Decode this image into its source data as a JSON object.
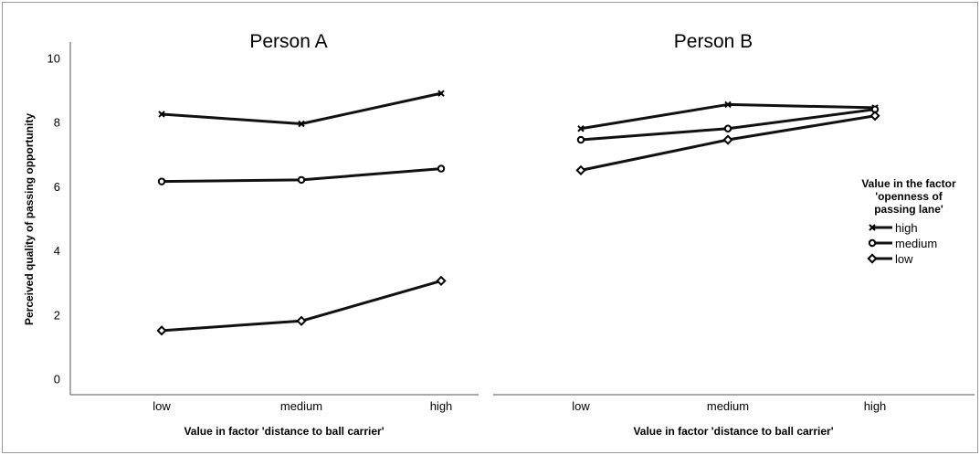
{
  "chart_data": {
    "type": "line",
    "ylabel": "Perceived quality of passing opportunity",
    "yticks": [
      0,
      2,
      4,
      6,
      8,
      10
    ],
    "ylim": [
      -0.5,
      10.5
    ],
    "legend": {
      "title_lines": [
        "Value in the factor",
        "'openness of",
        "passing lane'"
      ],
      "placement": "right"
    },
    "panels": [
      {
        "title": "Person A",
        "xlabel": "Value in factor 'distance to ball carrier'",
        "categories": [
          "low",
          "medium",
          "high"
        ],
        "series": [
          {
            "name": "high",
            "marker": "x",
            "values": [
              8.25,
              7.95,
              8.9
            ]
          },
          {
            "name": "medium",
            "marker": "circle",
            "values": [
              6.15,
              6.2,
              6.55
            ]
          },
          {
            "name": "low",
            "marker": "diamond",
            "values": [
              1.5,
              1.8,
              3.05
            ]
          }
        ]
      },
      {
        "title": "Person B",
        "xlabel": "Value in factor 'distance to ball carrier'",
        "categories": [
          "low",
          "medium",
          "high"
        ],
        "series": [
          {
            "name": "high",
            "marker": "x",
            "values": [
              7.8,
              8.55,
              8.45
            ]
          },
          {
            "name": "medium",
            "marker": "circle",
            "values": [
              7.45,
              7.8,
              8.4
            ]
          },
          {
            "name": "low",
            "marker": "diamond",
            "values": [
              6.5,
              7.45,
              8.2
            ]
          }
        ]
      }
    ]
  }
}
